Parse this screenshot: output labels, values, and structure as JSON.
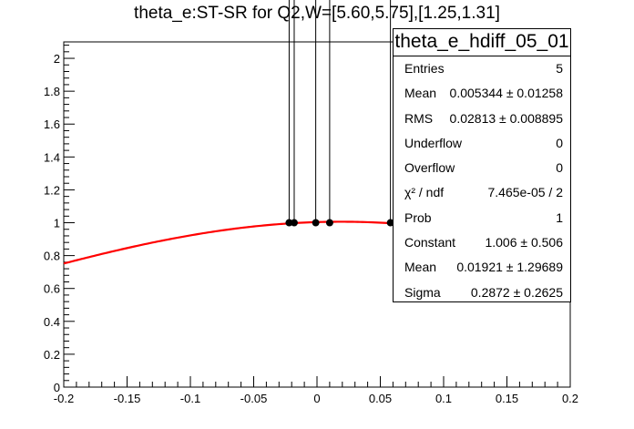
{
  "chart_data": {
    "type": "scatter",
    "title": "theta_e:ST-SR for Q2,W=[5.60,5.75],[1.25,1.31]",
    "xlim": [
      -0.2,
      0.2
    ],
    "ylim": [
      0,
      2.1
    ],
    "x_ticks": [
      "-0.2",
      "-0.15",
      "-0.1",
      "-0.05",
      "0",
      "0.05",
      "0.1",
      "0.15",
      "0.2"
    ],
    "y_ticks": [
      "0",
      "0.2",
      "0.4",
      "0.6",
      "0.8",
      "1",
      "1.2",
      "1.4",
      "1.6",
      "1.8",
      "2"
    ],
    "points": [
      {
        "x": -0.022,
        "y": 1.0,
        "err_low": 0,
        "err_high": 2.0
      },
      {
        "x": -0.018,
        "y": 1.0,
        "err_low": 0,
        "err_high": 2.0
      },
      {
        "x": -0.001,
        "y": 1.0,
        "err_low": 0,
        "err_high": 2.0
      },
      {
        "x": 0.01,
        "y": 1.0,
        "err_low": 0,
        "err_high": 2.0
      },
      {
        "x": 0.058,
        "y": 1.0,
        "err_low": 0,
        "err_high": 2.0
      }
    ],
    "fit": {
      "function": "gaus",
      "constant": 1.006,
      "mean": 0.01921,
      "sigma": 0.2872,
      "color": "#ff0000"
    },
    "marker_color": "#000000",
    "grid": false,
    "legend": "top-right"
  },
  "stats_box": {
    "title": "theta_e_hdiff_05_01",
    "rows": [
      {
        "key": "Entries",
        "value": "5"
      },
      {
        "key": "Mean",
        "value": "0.005344 ± 0.01258"
      },
      {
        "key": "RMS",
        "value": "0.02813 ± 0.008895"
      },
      {
        "key": "Underflow",
        "value": "0"
      },
      {
        "key": "Overflow",
        "value": "0"
      },
      {
        "key": "χ² / ndf",
        "value": "7.465e-05 / 2"
      },
      {
        "key": "Prob",
        "value": "1"
      },
      {
        "key": "Constant",
        "value": "1.006 ± 0.506"
      },
      {
        "key": "Mean",
        "value": "0.01921 ± 1.29689"
      },
      {
        "key": "Sigma",
        "value": "0.2872 ± 0.2625"
      }
    ]
  }
}
